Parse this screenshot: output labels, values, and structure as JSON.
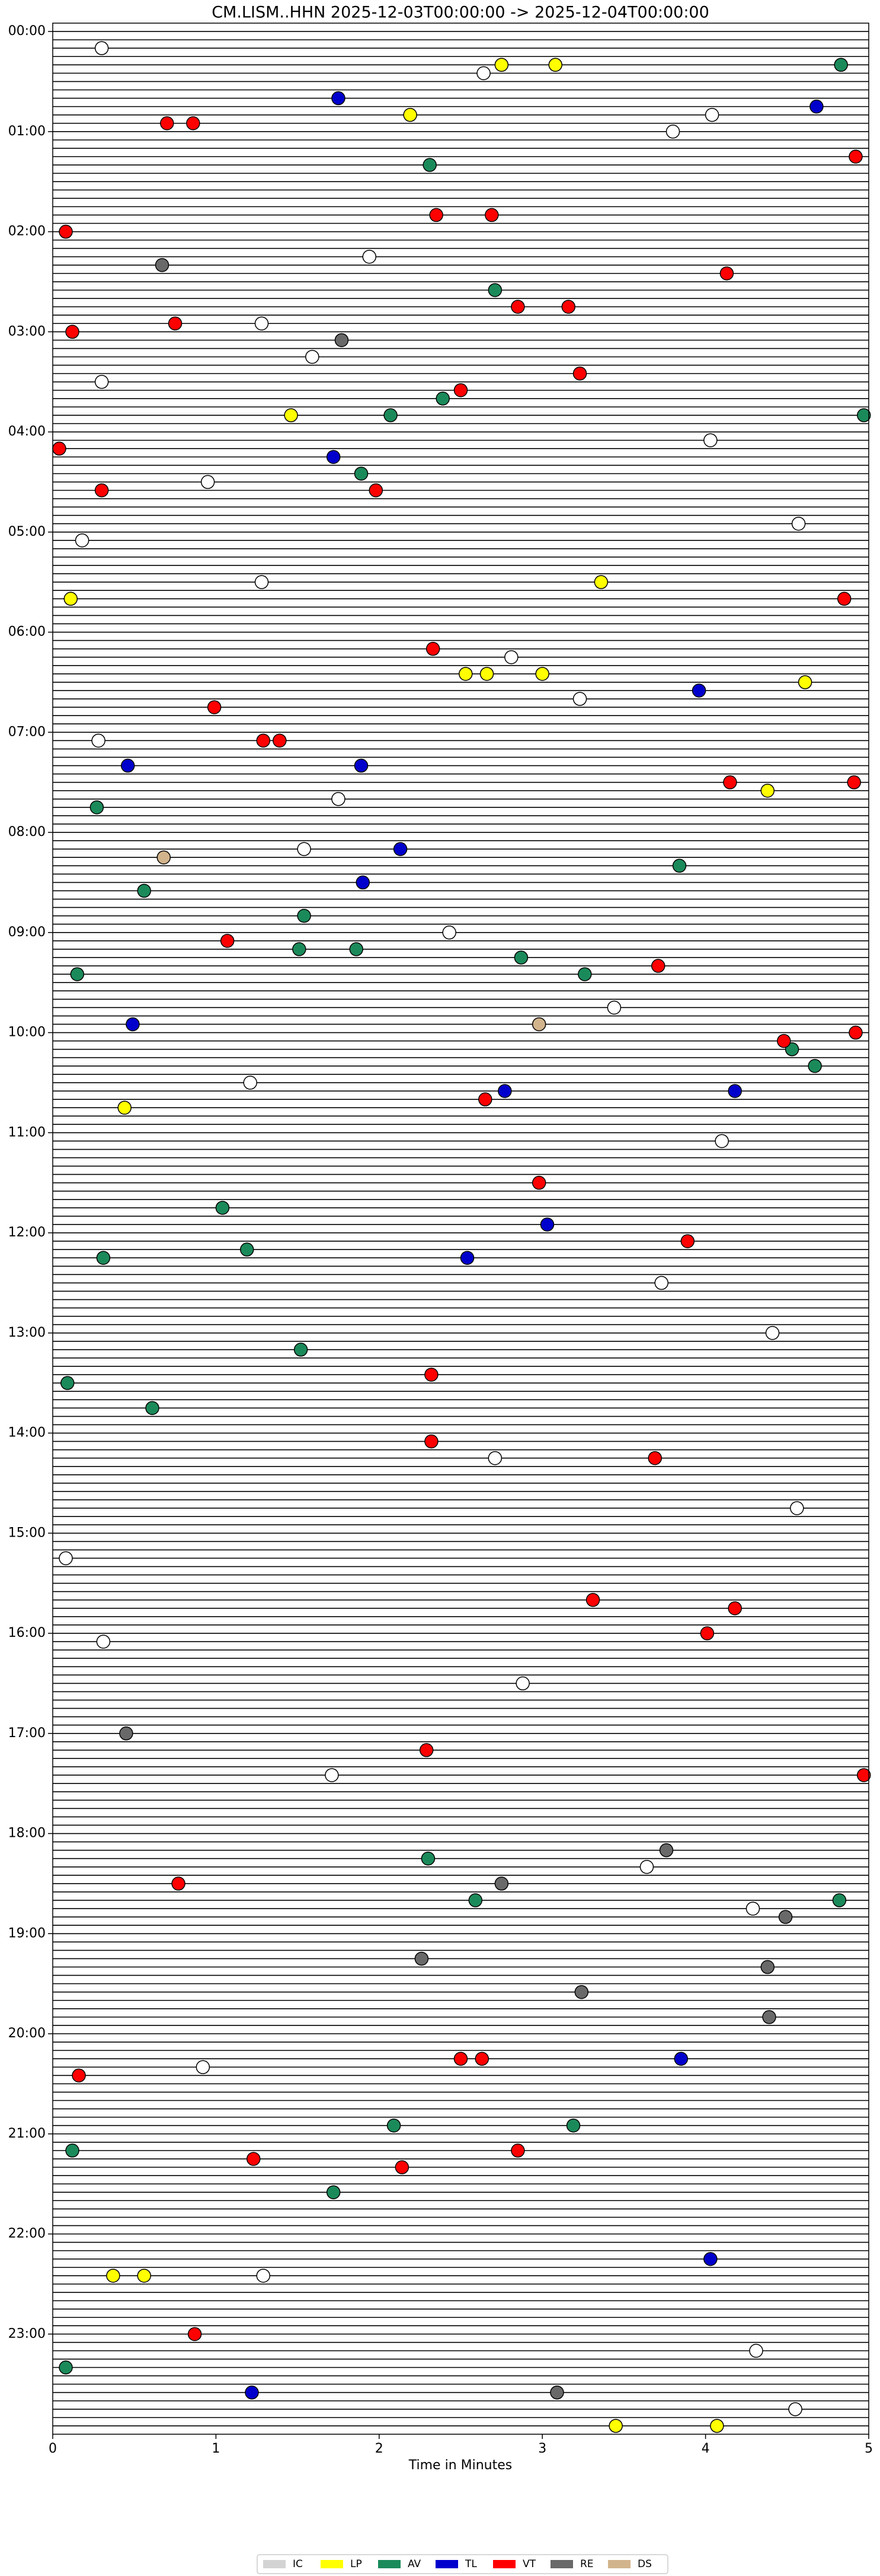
{
  "chart_data": {
    "type": "helicorder",
    "title": "CM.LISM..HHN  2025-12-03T00:00:00 -> 2025-12-04T00:00:00",
    "xlabel": "Time in Minutes",
    "xlim": [
      0,
      5
    ],
    "xticks": [
      0,
      1,
      2,
      3,
      4,
      5
    ],
    "ylim": [
      -1,
      288
    ],
    "y_inverted": true,
    "yticks": [
      {
        "value": 0,
        "label": "00:00"
      },
      {
        "value": 12,
        "label": "01:00"
      },
      {
        "value": 24,
        "label": "02:00"
      },
      {
        "value": 36,
        "label": "03:00"
      },
      {
        "value": 48,
        "label": "04:00"
      },
      {
        "value": 60,
        "label": "05:00"
      },
      {
        "value": 72,
        "label": "06:00"
      },
      {
        "value": 84,
        "label": "07:00"
      },
      {
        "value": 96,
        "label": "08:00"
      },
      {
        "value": 108,
        "label": "09:00"
      },
      {
        "value": 120,
        "label": "10:00"
      },
      {
        "value": 132,
        "label": "11:00"
      },
      {
        "value": 144,
        "label": "12:00"
      },
      {
        "value": 156,
        "label": "13:00"
      },
      {
        "value": 168,
        "label": "14:00"
      },
      {
        "value": 180,
        "label": "15:00"
      },
      {
        "value": 192,
        "label": "16:00"
      },
      {
        "value": 204,
        "label": "17:00"
      },
      {
        "value": 216,
        "label": "18:00"
      },
      {
        "value": 228,
        "label": "19:00"
      },
      {
        "value": 240,
        "label": "20:00"
      },
      {
        "value": 252,
        "label": "21:00"
      },
      {
        "value": 264,
        "label": "22:00"
      },
      {
        "value": 276,
        "label": "23:00"
      }
    ],
    "series": [
      {
        "name": "IC",
        "color": "#d3d3d3",
        "x": [],
        "values": []
      },
      {
        "name": "LP",
        "color": "#ffff00",
        "x": [
          2.75,
          3.08,
          2.19,
          1.46,
          3.36,
          2.53,
          2.66,
          3.0,
          4.38,
          0.11,
          0.44,
          0.37,
          0.56,
          3.45,
          4.07,
          4.61
        ],
        "values": [
          4,
          4,
          10,
          46,
          66,
          77,
          77,
          77,
          91,
          68,
          129,
          269,
          269,
          287,
          287,
          78
        ]
      },
      {
        "name": "AV",
        "color": "#1b8a5a",
        "x": [
          4.83,
          2.31,
          2.71,
          2.39,
          2.07,
          4.97,
          1.89,
          0.27,
          3.84,
          0.56,
          1.54,
          1.51,
          1.86,
          2.87,
          3.26,
          0.15,
          4.53,
          4.67,
          1.04,
          1.19,
          0.31,
          1.52,
          0.09,
          0.61,
          2.3,
          2.59,
          4.82,
          2.09,
          3.19,
          0.12,
          1.72,
          0.08
        ],
        "values": [
          4,
          16,
          31,
          44,
          46,
          46,
          53,
          93,
          100,
          103,
          106,
          110,
          110,
          111,
          113,
          113,
          122,
          124,
          141,
          146,
          147,
          158,
          162,
          165,
          219,
          224,
          224,
          251,
          251,
          254,
          259,
          280
        ]
      },
      {
        "name": "TL",
        "color": "#0000cd",
        "x": [
          1.75,
          4.68,
          1.72,
          0.46,
          1.89,
          3.96,
          2.13,
          1.9,
          0.49,
          2.77,
          4.18,
          3.03,
          2.54,
          3.85,
          4.03,
          1.22
        ],
        "values": [
          8,
          9,
          51,
          88,
          88,
          79,
          98,
          102,
          119,
          127,
          127,
          143,
          147,
          243,
          267,
          283
        ]
      },
      {
        "name": "VT",
        "color": "#ff0000",
        "x": [
          0.7,
          0.86,
          4.92,
          0.08,
          2.35,
          2.69,
          2.85,
          3.16,
          0.12,
          0.75,
          4.13,
          3.23,
          2.5,
          0.04,
          0.3,
          1.98,
          4.85,
          2.33,
          0.99,
          1.39,
          1.29,
          4.91,
          4.15,
          1.07,
          3.71,
          4.92,
          4.48,
          2.65,
          2.98,
          3.89,
          2.32,
          2.32,
          3.69,
          3.31,
          4.18,
          4.01,
          2.29,
          4.97,
          0.77,
          2.5,
          2.63,
          0.16,
          2.85,
          1.23,
          2.14,
          0.87
        ],
        "values": [
          11,
          11,
          15,
          24,
          22,
          22,
          33,
          33,
          36,
          35,
          29,
          41,
          43,
          50,
          55,
          55,
          68,
          74,
          81,
          85,
          85,
          90,
          90,
          109,
          112,
          120,
          121,
          128,
          138,
          145,
          169,
          161,
          171,
          188,
          189,
          192,
          206,
          209,
          222,
          243,
          243,
          245,
          254,
          255,
          256,
          276
        ]
      },
      {
        "name": "RE",
        "color": "#696969",
        "x": [
          0.67,
          1.77,
          0.45,
          3.24,
          4.39,
          3.76,
          2.26,
          2.75,
          3.09,
          4.38,
          4.49
        ],
        "values": [
          28,
          37,
          204,
          235,
          238,
          218,
          231,
          222,
          283,
          232,
          226
        ]
      },
      {
        "name": "DS",
        "color": "#d2b48c",
        "x": [
          0.68,
          2.98
        ],
        "values": [
          99,
          119
        ]
      }
    ],
    "detections": {
      "color": "#ffffff",
      "x": [
        0.3,
        2.64,
        3.8,
        4.04,
        1.94,
        1.28,
        1.59,
        0.3,
        4.03,
        0.95,
        4.57,
        0.18,
        1.28,
        2.81,
        3.23,
        0.28,
        1.75,
        1.54,
        2.43,
        3.44,
        1.21,
        4.1,
        3.73,
        4.41,
        2.71,
        4.56,
        0.08,
        0.31,
        2.88,
        1.71,
        3.64,
        4.29,
        0.92,
        1.29,
        4.31,
        4.55
      ],
      "values": [
        2,
        5,
        12,
        10,
        27,
        35,
        39,
        42,
        49,
        54,
        59,
        61,
        66,
        75,
        80,
        85,
        92,
        98,
        108,
        117,
        126,
        133,
        150,
        156,
        171,
        177,
        183,
        193,
        198,
        209,
        220,
        225,
        244,
        269,
        278,
        285
      ]
    }
  }
}
